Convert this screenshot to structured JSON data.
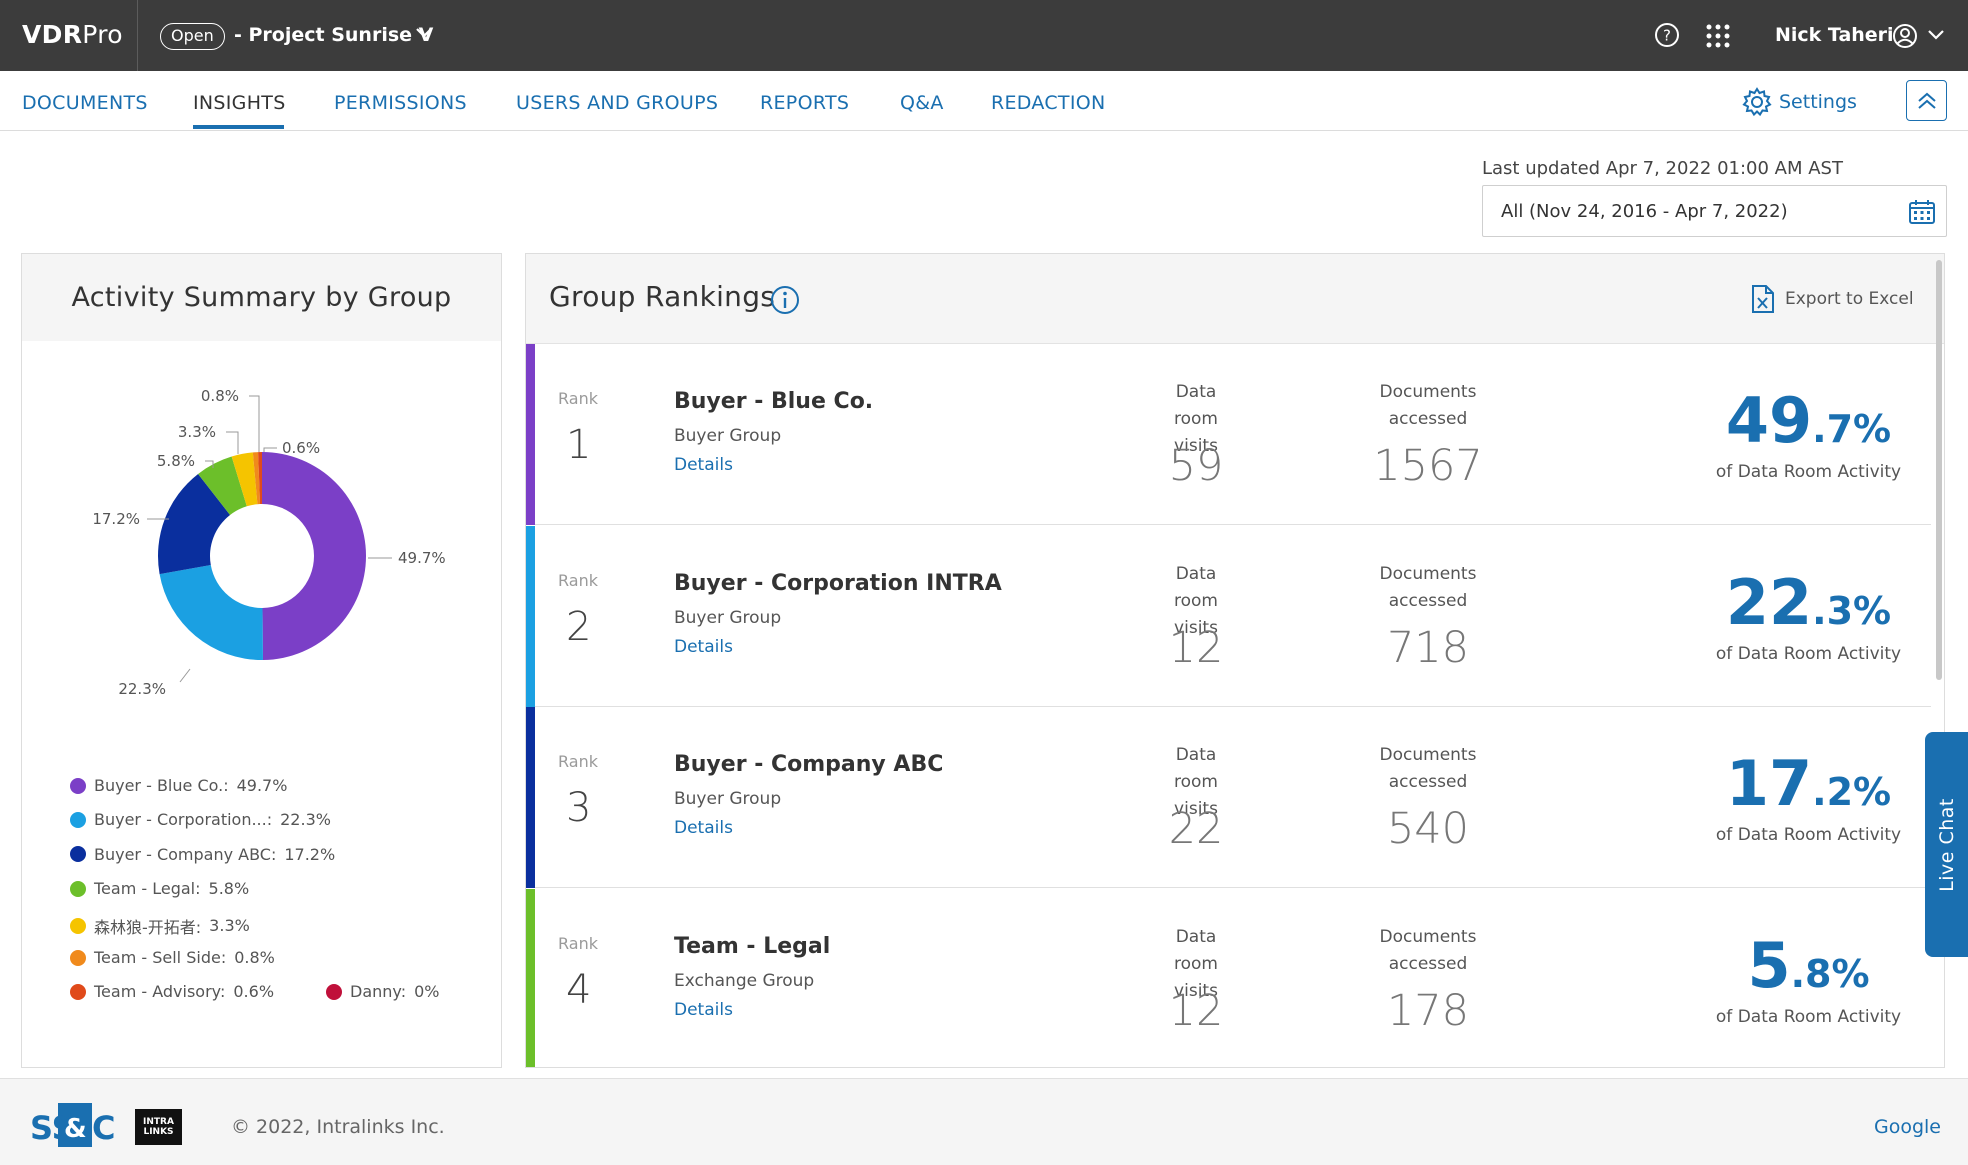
{
  "topbar": {
    "brand_bold": "VDR",
    "brand_rest": "Pro",
    "status_badge": "Open",
    "project_name": "- Project Sunrise V",
    "user_name": "Nick Taheri"
  },
  "nav": {
    "tabs": [
      {
        "label": "DOCUMENTS"
      },
      {
        "label": "INSIGHTS",
        "active": true
      },
      {
        "label": "PERMISSIONS"
      },
      {
        "label": "USERS AND GROUPS"
      },
      {
        "label": "REPORTS"
      },
      {
        "label": "Q&A"
      },
      {
        "label": "REDACTION"
      }
    ],
    "settings_label": "Settings"
  },
  "filter": {
    "last_updated": "Last updated Apr 7, 2022 01:00 AM AST",
    "date_range": "All (Nov 24, 2016 - Apr 7, 2022)"
  },
  "summary": {
    "title": "Activity Summary by Group",
    "slice_labels": [
      "49.7%",
      "22.3%",
      "17.2%",
      "5.8%",
      "3.3%",
      "0.8%",
      "0.6%"
    ],
    "legend": [
      {
        "label": "Buyer - Blue Co.:",
        "value": "49.7%",
        "color": "#7b3fc7"
      },
      {
        "label": "Buyer - Corporation...:",
        "value": "22.3%",
        "color": "#1ba0e2"
      },
      {
        "label": "Buyer - Company ABC:",
        "value": "17.2%",
        "color": "#0a2f9e"
      },
      {
        "label": "Team - Legal:",
        "value": "5.8%",
        "color": "#6cbf2a"
      },
      {
        "label": "森林狼-开拓者:",
        "value": "3.3%",
        "color": "#f5c400"
      },
      {
        "label": "Team - Sell Side:",
        "value": "0.8%",
        "color": "#f08a1c"
      },
      {
        "label": "Team - Advisory:",
        "value": "0.6%",
        "color": "#e04a1a"
      },
      {
        "label": "Danny:",
        "value": "0%",
        "color": "#c0103a"
      }
    ]
  },
  "chart_data": {
    "type": "pie",
    "categories": [
      "Buyer - Blue Co.",
      "Buyer - Corporation INTRA",
      "Buyer - Company ABC",
      "Team - Legal",
      "森林狼-开拓者",
      "Team - Sell Side",
      "Team - Advisory",
      "Danny"
    ],
    "values": [
      49.7,
      22.3,
      17.2,
      5.8,
      3.3,
      0.8,
      0.6,
      0
    ],
    "colors": [
      "#7b3fc7",
      "#1ba0e2",
      "#0a2f9e",
      "#6cbf2a",
      "#f5c400",
      "#f08a1c",
      "#e04a1a",
      "#c0103a"
    ],
    "title": "Activity Summary by Group",
    "legend": "bottom"
  },
  "rankings": {
    "title": "Group Rankings",
    "export_label": "Export to Excel",
    "rank_label": "Rank",
    "visits_label": "Data room visits",
    "docs_label": "Documents accessed",
    "pct_label": "of Data Room Activity",
    "details_label": "Details",
    "rows": [
      {
        "rank": "1",
        "name": "Buyer - Blue Co.",
        "type": "Buyer Group",
        "visits": "59",
        "docs": "1567",
        "pct_int": "49",
        "pct_dec": ".7%",
        "color": "#7b3fc7"
      },
      {
        "rank": "2",
        "name": "Buyer - Corporation INTRA",
        "type": "Buyer Group",
        "visits": "12",
        "docs": "718",
        "pct_int": "22",
        "pct_dec": ".3%",
        "color": "#1ba0e2"
      },
      {
        "rank": "3",
        "name": "Buyer - Company ABC",
        "type": "Buyer Group",
        "visits": "22",
        "docs": "540",
        "pct_int": "17",
        "pct_dec": ".2%",
        "color": "#0a2f9e"
      },
      {
        "rank": "4",
        "name": "Team - Legal",
        "type": "Exchange Group",
        "visits": "12",
        "docs": "178",
        "pct_int": "5",
        "pct_dec": ".8%",
        "color": "#6cbf2a"
      }
    ]
  },
  "live_chat": "Live Chat",
  "footer": {
    "copyright": "© 2022, Intralinks Inc.",
    "link": "Google",
    "intralinks_logo": "INTRA LINKS"
  }
}
